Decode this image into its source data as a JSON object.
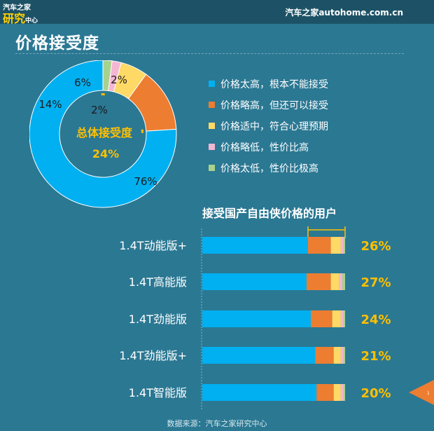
{
  "header": {
    "logo_top": "汽车之家",
    "logo_main": "研究",
    "logo_sub": "中心",
    "site": "汽车之家autohome.com.cn"
  },
  "page_title": "价格接受度",
  "footer": "数据来源：汽车之家研究中心",
  "page_marker": "1",
  "colors": {
    "background": "#2b7893",
    "too_high": "#00b0f0",
    "slightly_high": "#ed7d31",
    "moderate": "#ffd966",
    "slightly_low": "#f4b6d2",
    "too_low": "#a9d18e",
    "accent_yellow": "#ffc000"
  },
  "chart_data": [
    {
      "type": "pie",
      "center_label": "总体接受度",
      "center_value": "24%",
      "categories": [
        "价格太高，根本不能接受",
        "价格略高，但还可以接受",
        "价格适中，符合心理预期",
        "价格略低，性价比高",
        "价格太低，性价比极高"
      ],
      "values": [
        76,
        14,
        6,
        2,
        2
      ],
      "value_labels": [
        "76%",
        "14%",
        "6%",
        "2%",
        "2%"
      ]
    },
    {
      "type": "bar",
      "title": "接受国产自由侠价格的用户",
      "categories": [
        "1.4T动能版+",
        "1.4T高能版",
        "1.4T劲能版",
        "1.4T劲能版+",
        "1.4T智能版"
      ],
      "series": [
        {
          "values": [
            74,
            73,
            76,
            79,
            80
          ]
        },
        {
          "values": [
            16,
            17,
            15,
            13,
            12
          ]
        },
        {
          "values": [
            7,
            6,
            6,
            5,
            5
          ]
        },
        {
          "values": [
            2,
            2,
            2,
            2,
            2
          ]
        },
        {
          "values": [
            1,
            2,
            1,
            1,
            1
          ]
        }
      ],
      "acceptance_labels": [
        "26%",
        "27%",
        "24%",
        "21%",
        "20%"
      ],
      "xlim": [
        0,
        100
      ]
    }
  ]
}
